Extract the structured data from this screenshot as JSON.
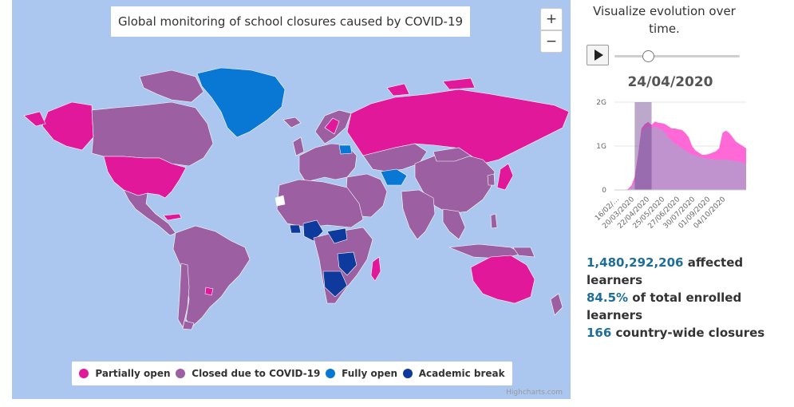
{
  "map": {
    "title": "Global monitoring of school closures caused by COVID-19",
    "zoom_in_label": "+",
    "zoom_out_label": "−",
    "credits": "Highcharts.com",
    "legend": [
      {
        "label": "Partially open",
        "color": "#e2189b"
      },
      {
        "label": "Closed due to COVID-19",
        "color": "#9b5fa2"
      },
      {
        "label": "Fully open",
        "color": "#0878d4"
      },
      {
        "label": "Academic break",
        "color": "#0d3a9c"
      }
    ],
    "colors": {
      "ocean": "#abc7f0",
      "no_data": "#ffffff"
    }
  },
  "timeline": {
    "caption": "Visualize evolution over time.",
    "play_icon": "play-icon",
    "current_date": "24/04/2020",
    "slider_position": 0.27,
    "chart_data": {
      "type": "area",
      "title": "",
      "xlabel": "",
      "ylabel": "",
      "yticks": [
        "0",
        "1G",
        "2G"
      ],
      "ylim": [
        0,
        2000000000
      ],
      "xticks": [
        "16/02/…",
        "20/03/2020",
        "22/04/2020",
        "25/05/2020",
        "27/06/2020",
        "30/07/2020",
        "01/09/2020",
        "04/10/2020"
      ],
      "highlight_range": [
        "20/03/2020",
        "24/04/2020"
      ],
      "series": [
        {
          "name": "",
          "color": "#ff4fd0",
          "values": [
            0,
            0,
            0,
            0,
            20000000,
            100000000,
            300000000,
            800000000,
            1400000000,
            1500000000,
            1550000000,
            1480000000,
            1560000000,
            1530000000,
            1520000000,
            1500000000,
            1450000000,
            1400000000,
            1400000000,
            1380000000,
            1370000000,
            1300000000,
            1200000000,
            1000000000,
            900000000,
            850000000,
            800000000,
            800000000,
            820000000,
            850000000,
            880000000,
            950000000,
            1300000000,
            1350000000,
            1300000000,
            1200000000,
            1100000000,
            1050000000,
            1000000000,
            950000000
          ]
        },
        {
          "name": "",
          "color": "#b59bce",
          "values": [
            0,
            0,
            0,
            0,
            10000000,
            50000000,
            200000000,
            700000000,
            1300000000,
            1400000000,
            1450000000,
            1400000000,
            1450000000,
            1400000000,
            1380000000,
            1300000000,
            1200000000,
            1100000000,
            1050000000,
            1000000000,
            950000000,
            900000000,
            850000000,
            800000000,
            780000000,
            760000000,
            740000000,
            720000000,
            700000000,
            700000000,
            690000000,
            680000000,
            700000000,
            690000000,
            680000000,
            670000000,
            660000000,
            640000000,
            620000000,
            600000000
          ]
        }
      ]
    }
  },
  "stats": {
    "affected_value": "1,480,292,206",
    "affected_label": " affected learners",
    "percent_value": "84.5%",
    "percent_label": " of total enrolled learners",
    "closures_value": "166",
    "closures_label": " country-wide closures"
  }
}
